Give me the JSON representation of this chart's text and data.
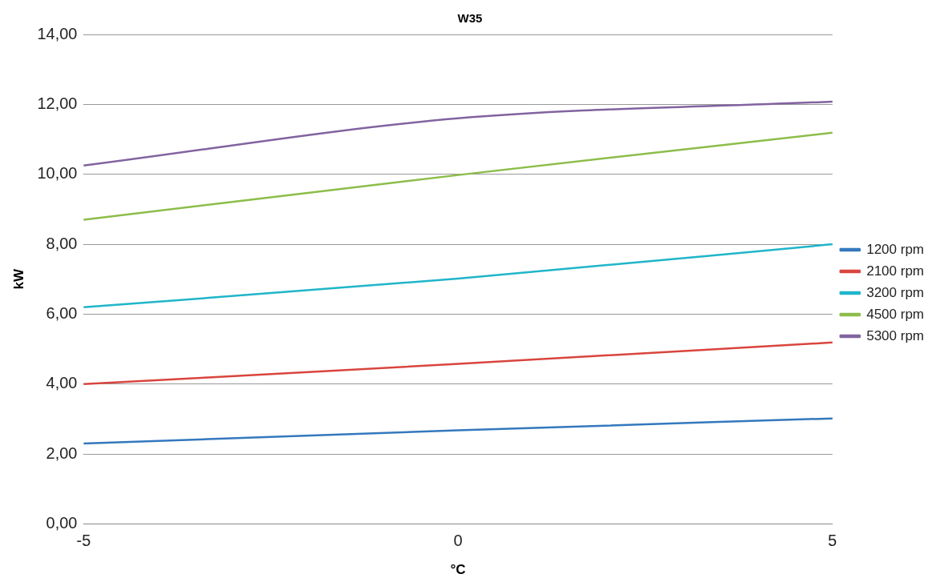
{
  "chart_data": {
    "type": "line",
    "title": "W35",
    "xlabel": "°C",
    "ylabel": "kW",
    "categories": [
      "-5",
      "0",
      "5"
    ],
    "series": [
      {
        "name": "1200 rpm",
        "color": "#3478bd",
        "values": [
          2.3,
          2.68,
          3.02
        ]
      },
      {
        "name": "2100 rpm",
        "color": "#d9453e",
        "values": [
          4.0,
          4.58,
          5.19
        ]
      },
      {
        "name": "3200 rpm",
        "color": "#1fb5c9",
        "values": [
          6.2,
          7.02,
          8.0
        ]
      },
      {
        "name": "4500 rpm",
        "color": "#8cbd4a",
        "values": [
          8.7,
          9.98,
          11.19
        ]
      },
      {
        "name": "5300 rpm",
        "color": "#8263a0",
        "values": [
          10.25,
          11.6,
          12.08
        ]
      }
    ],
    "ylim": [
      0,
      14
    ],
    "yticks": [
      {
        "value": 0,
        "label": "0,00"
      },
      {
        "value": 2,
        "label": "2,00"
      },
      {
        "value": 4,
        "label": "4,00"
      },
      {
        "value": 6,
        "label": "6,00"
      },
      {
        "value": 8,
        "label": "8,00"
      },
      {
        "value": 10,
        "label": "10,00"
      },
      {
        "value": 12,
        "label": "12,00"
      },
      {
        "value": 14,
        "label": "14,00"
      }
    ],
    "grid": "y",
    "legend": "right",
    "marker": "none",
    "line_style": "solid"
  }
}
